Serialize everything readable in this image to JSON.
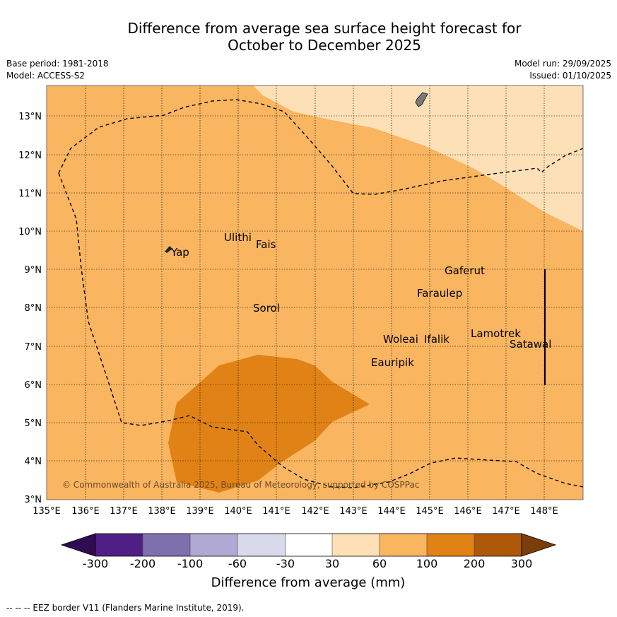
{
  "header": {
    "title_line1": "Difference from average sea surface height forecast for",
    "title_line2": "October to December 2025",
    "base_period": "Base period: 1981-2018",
    "model": "Model: ACCESS-S2",
    "model_run": "Model run: 29/09/2025",
    "issued": "Issued: 01/10/2025"
  },
  "map": {
    "lon_range": [
      135,
      149
    ],
    "lat_range": [
      3,
      13.8
    ],
    "lon_ticks": [
      "135°E",
      "136°E",
      "137°E",
      "138°E",
      "139°E",
      "140°E",
      "141°E",
      "142°E",
      "143°E",
      "144°E",
      "145°E",
      "146°E",
      "147°E",
      "148°E"
    ],
    "lat_ticks": [
      "3°N",
      "4°N",
      "5°N",
      "6°N",
      "7°N",
      "8°N",
      "9°N",
      "10°N",
      "11°N",
      "12°N",
      "13°N"
    ],
    "places": [
      "Yap",
      "Ulithi",
      "Fais",
      "Sorol",
      "Gaferut",
      "Faraulep",
      "Woleai",
      "Ifalik",
      "Lamotrek",
      "Satawal",
      "Eauripik"
    ],
    "copyright": "© Commonwealth of Australia 2025, Bureau of Meteorology, supported by COSPPac"
  },
  "colorbar": {
    "ticks": [
      "-300",
      "-200",
      "-100",
      "-60",
      "-30",
      "30",
      "60",
      "100",
      "200",
      "300"
    ],
    "colors": [
      "#2f0b52",
      "#4f1f86",
      "#7e70ac",
      "#b1a9d3",
      "#d9d9ec",
      "#ffffff",
      "#fde0b6",
      "#f9b560",
      "#e08215",
      "#ae5909",
      "#7a3e09"
    ],
    "label": "Difference from average (mm)"
  },
  "footer": {
    "eez_note": "-- -- -- EEZ border V11 (Flanders Marine Institute, 2019)."
  }
}
